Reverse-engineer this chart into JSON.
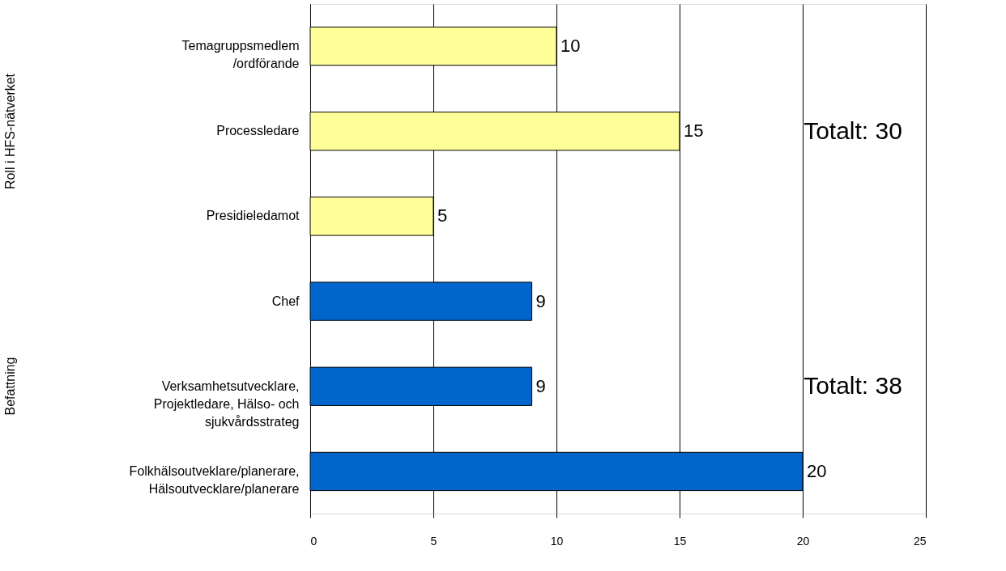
{
  "chart_data": {
    "type": "bar",
    "orientation": "horizontal",
    "categories": [
      "Temagruppsmedlem\n/ordförande",
      "Processledare",
      "Presidieledamot",
      "Chef",
      "Verksamhetsutvecklare,\nProjektledare, Hälso- och\nsjukvårdsstrateg",
      "Folkhälsoutveklare/planerare,\nHälsoutvecklare/planerare"
    ],
    "values": [
      10,
      15,
      5,
      9,
      9,
      20
    ],
    "colors": [
      "#ffff99",
      "#ffff99",
      "#ffff99",
      "#0066cc",
      "#0066cc",
      "#0066cc"
    ],
    "xlim": [
      0,
      25
    ],
    "xticks": [
      0,
      5,
      10,
      15,
      20,
      25
    ],
    "grid": "x",
    "data_labels": true,
    "annotations": [
      "Roll i HFS-nätverket",
      "Befattning",
      "Totalt: 30",
      "Totalt: 38"
    ]
  }
}
